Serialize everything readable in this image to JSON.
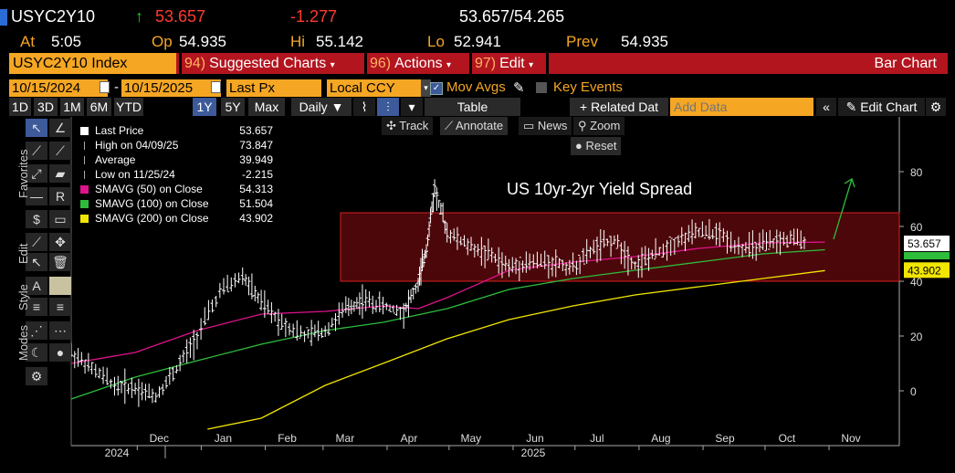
{
  "header": {
    "ticker": "USYC2Y10",
    "last": "53.657",
    "change": "-1.277",
    "bid_ask": "53.657/54.265",
    "at_label": "At",
    "at_time": "5:05",
    "op_label": "Op",
    "op_value": "54.935",
    "hi_label": "Hi",
    "hi_value": "55.142",
    "lo_label": "Lo",
    "lo_value": "52.941",
    "prev_label": "Prev",
    "prev_value": "54.935"
  },
  "menubar": {
    "security": "USYC2Y10 Index",
    "suggested_num": "94)",
    "suggested": "Suggested Charts",
    "actions_num": "96)",
    "actions": "Actions",
    "edit_num": "97)",
    "edit": "Edit",
    "chart_type": "Bar Chart"
  },
  "controls": {
    "start_date": "10/15/2024",
    "end_date": "10/15/2025",
    "field": "Last Px",
    "currency": "Local CCY",
    "mov_avgs": "Mov Avgs",
    "key_events": "Key Events",
    "periods": [
      "1D",
      "3D",
      "1M",
      "6M",
      "YTD",
      "1Y",
      "5Y",
      "Max"
    ],
    "selected_period": "1Y",
    "frequency": "Daily",
    "table": "Table",
    "related_data": "+ Related Dat",
    "add_data_placeholder": "Add Data",
    "edit_chart": "Edit Chart",
    "track": "Track",
    "annotate": "Annotate",
    "news": "News",
    "zoom": "Zoom",
    "reset": "Reset"
  },
  "side_tabs": [
    "Favorites",
    "Edit",
    "Style",
    "Modes"
  ],
  "legend": [
    {
      "label": "Last Price",
      "value": "53.657",
      "color": "#ffffff"
    },
    {
      "label": "High on 04/09/25",
      "value": "73.847",
      "color": ""
    },
    {
      "label": "Average",
      "value": "39.949",
      "color": ""
    },
    {
      "label": "Low on 11/25/24",
      "value": "-2.215",
      "color": ""
    },
    {
      "label": "SMAVG (50)  on Close",
      "value": "54.313",
      "color": "#e0138c"
    },
    {
      "label": "SMAVG (100)  on Close",
      "value": "51.504",
      "color": "#2ebd3b"
    },
    {
      "label": "SMAVG (200)  on Close",
      "value": "43.902",
      "color": "#f2e600"
    }
  ],
  "chart_data": {
    "type": "line",
    "title": "US 10yr-2yr Yield Spread",
    "xlabel": "",
    "ylabel": "",
    "ylim": [
      -5,
      95
    ],
    "y_ticks": [
      "80",
      "60",
      "40",
      "20",
      "0"
    ],
    "x_ticks": [
      "Dec",
      "Jan",
      "Feb",
      "Mar",
      "Apr",
      "May",
      "Jun",
      "Jul",
      "Aug",
      "Sep",
      "Oct",
      "Nov"
    ],
    "x_year_labels": [
      "2024",
      "2025"
    ],
    "series": [
      {
        "name": "Last Price",
        "color": "#ffffff",
        "x": [
          "2024-10-15",
          "2024-10-25",
          "2024-11-05",
          "2024-11-15",
          "2024-11-25",
          "2024-12-05",
          "2024-12-15",
          "2024-12-26",
          "2025-01-06",
          "2025-01-15",
          "2025-01-25",
          "2025-02-05",
          "2025-02-15",
          "2025-02-25",
          "2025-03-05",
          "2025-03-15",
          "2025-03-25",
          "2025-04-01",
          "2025-04-05",
          "2025-04-09",
          "2025-04-15",
          "2025-04-25",
          "2025-05-05",
          "2025-05-15",
          "2025-05-25",
          "2025-06-05",
          "2025-06-15",
          "2025-06-25",
          "2025-07-05",
          "2025-07-15",
          "2025-07-25",
          "2025-08-05",
          "2025-08-15",
          "2025-08-25",
          "2025-09-05",
          "2025-09-15",
          "2025-09-25",
          "2025-10-05",
          "2025-10-15"
        ],
        "values": [
          14,
          8,
          2,
          1,
          -2,
          8,
          20,
          36,
          42,
          32,
          25,
          20,
          22,
          30,
          33,
          31,
          29,
          39,
          52,
          73.8,
          58,
          53,
          50,
          45,
          47,
          47,
          45,
          52,
          55,
          46,
          50,
          55,
          58,
          57,
          52,
          53,
          55,
          55,
          53.7
        ]
      },
      {
        "name": "SMAVG (50)",
        "color": "#e0138c",
        "x": [
          "2024-10-15",
          "2024-11-15",
          "2024-12-15",
          "2025-01-15",
          "2025-02-15",
          "2025-03-15",
          "2025-04-01",
          "2025-04-15",
          "2025-05-15",
          "2025-06-15",
          "2025-07-15",
          "2025-08-15",
          "2025-09-15",
          "2025-10-15"
        ],
        "values": [
          10,
          14,
          22,
          28,
          29,
          31,
          30,
          34,
          44,
          47,
          49,
          52,
          54,
          54.3
        ]
      },
      {
        "name": "SMAVG (100)",
        "color": "#2ebd3b",
        "x": [
          "2024-10-15",
          "2024-11-15",
          "2024-12-15",
          "2025-01-15",
          "2025-02-15",
          "2025-03-15",
          "2025-04-15",
          "2025-05-15",
          "2025-06-15",
          "2025-07-15",
          "2025-08-15",
          "2025-09-15",
          "2025-10-15"
        ],
        "values": [
          -3,
          5,
          11,
          17,
          22,
          25,
          30,
          37,
          41,
          44,
          47,
          50,
          51.5
        ]
      },
      {
        "name": "SMAVG (200)",
        "color": "#f2e600",
        "x": [
          "2024-12-20",
          "2025-01-15",
          "2025-02-15",
          "2025-03-15",
          "2025-04-15",
          "2025-05-15",
          "2025-06-15",
          "2025-07-15",
          "2025-08-15",
          "2025-09-15",
          "2025-10-15"
        ],
        "values": [
          -14,
          -10,
          2,
          10,
          19,
          26,
          31,
          35,
          38,
          41,
          43.9
        ]
      }
    ],
    "range_band": {
      "low": 40,
      "high": 65,
      "color": "#8b0d12"
    },
    "last_price_label": "53.657",
    "sma200_label": "43.902"
  }
}
